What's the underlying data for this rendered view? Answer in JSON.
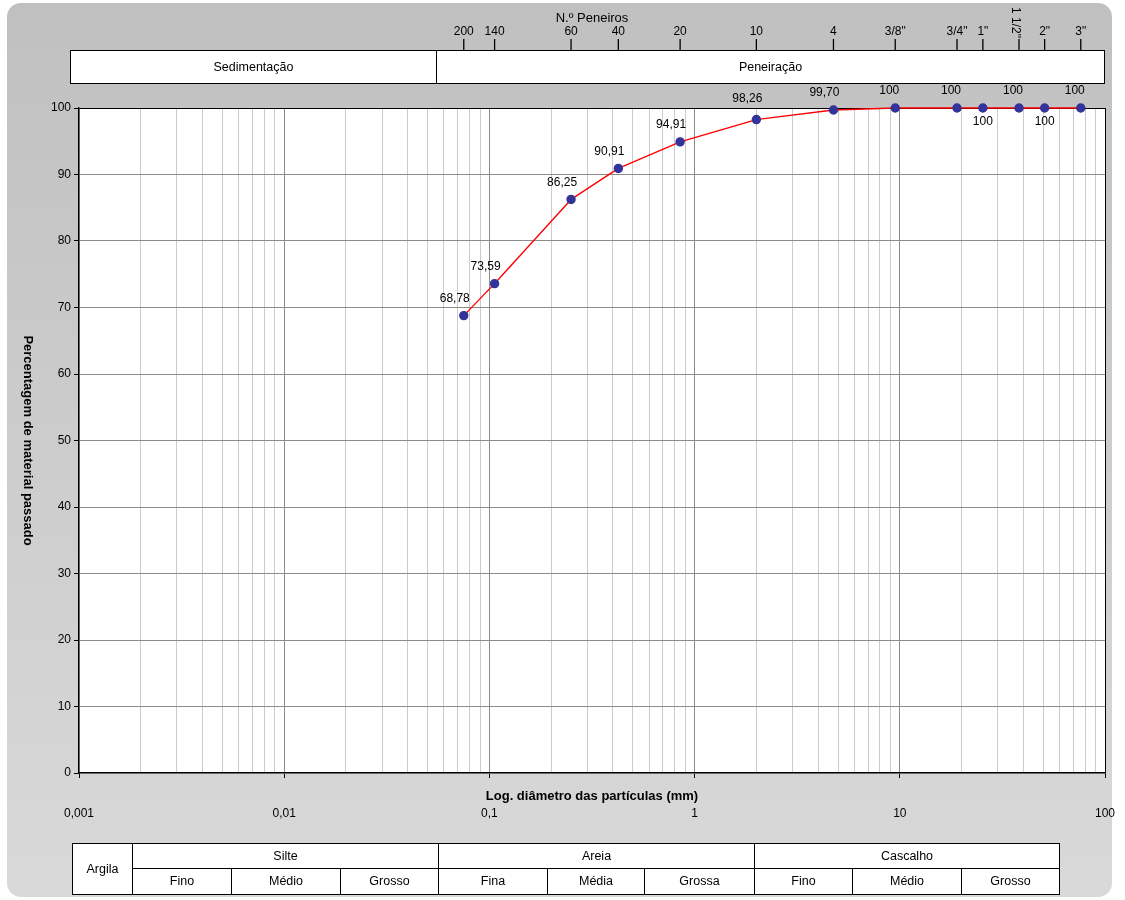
{
  "chart_data": {
    "type": "line",
    "xlabel": "Log. diâmetro das partículas (mm)",
    "ylabel": "Percentagem de material passado",
    "x2label": "N.º Peneiros",
    "log": "x",
    "grid": true,
    "marker": "circle",
    "line_style": "solid",
    "xlim": [
      0.001,
      100
    ],
    "xticks": [
      {
        "value": 0.001,
        "label": "0,001"
      },
      {
        "value": 0.002,
        "label": null
      },
      {
        "value": 0.003,
        "label": null
      },
      {
        "value": 0.004,
        "label": null
      },
      {
        "value": 0.005,
        "label": null
      },
      {
        "value": 0.006,
        "label": null
      },
      {
        "value": 0.007,
        "label": null
      },
      {
        "value": 0.008,
        "label": null
      },
      {
        "value": 0.009,
        "label": null
      },
      {
        "value": 0.01,
        "label": "0,01"
      },
      {
        "value": 0.02,
        "label": null
      },
      {
        "value": 0.03,
        "label": null
      },
      {
        "value": 0.04,
        "label": null
      },
      {
        "value": 0.05,
        "label": null
      },
      {
        "value": 0.06,
        "label": null
      },
      {
        "value": 0.07,
        "label": null
      },
      {
        "value": 0.08,
        "label": null
      },
      {
        "value": 0.09,
        "label": null
      },
      {
        "value": 0.1,
        "label": "0,1"
      },
      {
        "value": 0.2,
        "label": null
      },
      {
        "value": 0.3,
        "label": null
      },
      {
        "value": 0.4,
        "label": null
      },
      {
        "value": 0.5,
        "label": null
      },
      {
        "value": 0.6,
        "label": null
      },
      {
        "value": 0.7,
        "label": null
      },
      {
        "value": 0.8,
        "label": null
      },
      {
        "value": 0.9,
        "label": null
      },
      1,
      {
        "value": 2,
        "label": null
      },
      {
        "value": 3,
        "label": null
      },
      {
        "value": 4,
        "label": null
      },
      {
        "value": 5,
        "label": null
      },
      {
        "value": 6,
        "label": null
      },
      {
        "value": 7,
        "label": null
      },
      {
        "value": 8,
        "label": null
      },
      {
        "value": 9,
        "label": null
      },
      10,
      {
        "value": 20,
        "label": null
      },
      {
        "value": 30,
        "label": null
      },
      {
        "value": 40,
        "label": null
      },
      {
        "value": 50,
        "label": null
      },
      {
        "value": 60,
        "label": null
      },
      {
        "value": 70,
        "label": null
      },
      {
        "value": 80,
        "label": null
      },
      {
        "value": 90,
        "label": null
      },
      100
    ],
    "ylim": [
      0,
      100
    ],
    "yticks": [
      0,
      10,
      20,
      30,
      40,
      50,
      60,
      70,
      80,
      90,
      100
    ],
    "x": [
      0.075,
      0.106,
      0.25,
      0.425,
      0.85,
      2,
      4.75,
      9.5,
      19,
      25.4,
      38.1,
      50.8,
      76.2
    ],
    "series": [
      {
        "color": "#ff0000",
        "colors": [
          "#333399",
          "#333399",
          "#333399",
          "#333399",
          "#333399",
          "#333399",
          "#333399",
          "#333399",
          "#333399",
          "#333399",
          "#333399",
          "#333399",
          "#333399"
        ],
        "values": [
          68.78,
          73.59,
          86.25,
          90.91,
          94.91,
          98.26,
          99.7,
          100,
          100,
          100,
          100,
          100,
          100
        ],
        "value_labels": [
          "68,78",
          "73,59",
          "86,25",
          "90,91",
          "94,91",
          "98,26",
          "99,70",
          "100",
          "100",
          "100",
          "100",
          "100",
          "100"
        ]
      }
    ],
    "annotations": [
      {
        "text": "200",
        "x": 0.075
      },
      {
        "text": "140",
        "x": 0.106
      },
      {
        "text": "60",
        "x": 0.25
      },
      {
        "text": "40",
        "x": 0.425
      },
      {
        "text": "20",
        "x": 0.85
      },
      {
        "text": "10",
        "x": 2
      },
      {
        "text": "4",
        "x": 4.75
      },
      {
        "text": "3/8\"",
        "x": 9.5
      },
      {
        "text": "3/4\"",
        "x": 19
      },
      {
        "text": "1\"",
        "x": 25.4
      },
      {
        "text": "1 1/2\"",
        "x": 38.1
      },
      {
        "text": "2\"",
        "x": 50.8
      },
      {
        "text": "3\"",
        "x": 76.2
      },
      "Sedimentação",
      "Peneiração",
      "Argila",
      "Silte",
      "Areia",
      "Cascalho",
      "Fino",
      "Médio",
      "Grosso",
      "Fina",
      "Média",
      "Grossa",
      "Fino",
      "Médio",
      "Grosso"
    ]
  }
}
